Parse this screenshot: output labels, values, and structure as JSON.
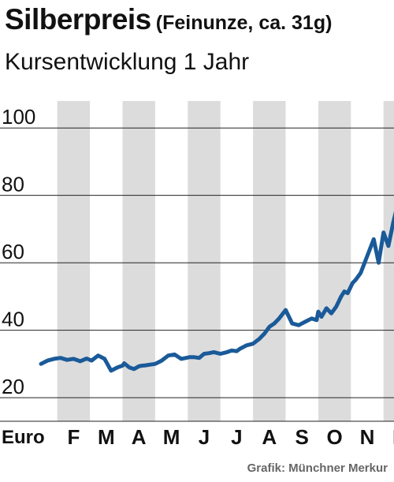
{
  "chart_data": {
    "type": "line",
    "title": "Silberpreis",
    "title_note": "(Feinunze, ca. 31g)",
    "subtitle": "Kursentwicklung 1 Jahr",
    "xlabel": "Euro",
    "ylabel": "",
    "ylim": [
      13,
      108
    ],
    "yticks": [
      20,
      40,
      60,
      80,
      100
    ],
    "months": [
      "F",
      "M",
      "A",
      "M",
      "J",
      "J",
      "A",
      "S",
      "O",
      "N",
      "D"
    ],
    "xlim": [
      0,
      12
    ],
    "grid": "vertical-bands",
    "series": [
      {
        "color": "#1a5a99",
        "x": [
          0.0,
          0.2,
          0.4,
          0.6,
          0.8,
          1.0,
          1.2,
          1.4,
          1.55,
          1.75,
          1.95,
          2.15,
          2.35,
          2.5,
          2.55,
          2.7,
          2.85,
          2.95,
          3.0,
          3.1,
          3.2,
          3.35,
          3.5,
          3.7,
          3.9,
          4.1,
          4.3,
          4.45,
          4.55,
          4.7,
          4.85,
          5.0,
          5.15,
          5.3,
          5.5,
          5.7,
          5.85,
          6.0,
          6.1,
          6.3,
          6.5,
          6.7,
          6.85,
          7.0,
          7.15,
          7.3,
          7.5,
          7.7,
          7.9,
          8.1,
          8.3,
          8.45,
          8.5,
          8.6,
          8.75,
          8.9,
          9.05,
          9.2,
          9.3,
          9.4,
          9.55,
          9.65,
          9.8,
          10.0,
          10.2,
          10.35,
          10.5,
          10.65,
          10.8,
          10.95,
          11.05,
          11.15,
          11.25,
          11.35,
          11.45,
          11.55,
          11.65,
          11.75,
          11.85,
          11.95
        ],
        "values": [
          30.0,
          31.0,
          31.5,
          31.8,
          31.2,
          31.5,
          30.8,
          31.6,
          31.0,
          32.5,
          31.5,
          28.0,
          29.0,
          29.5,
          30.2,
          29.0,
          28.5,
          29.0,
          29.3,
          29.5,
          29.6,
          29.8,
          30.0,
          31.0,
          32.5,
          32.8,
          31.5,
          31.8,
          32.0,
          32.0,
          31.8,
          33.0,
          33.2,
          33.5,
          33.0,
          33.5,
          34.0,
          33.8,
          34.5,
          35.5,
          36.0,
          37.5,
          39.0,
          41.0,
          42.0,
          43.5,
          46.0,
          42.0,
          41.5,
          42.5,
          43.5,
          43.0,
          45.5,
          44.0,
          46.5,
          45.0,
          47.0,
          50.0,
          51.5,
          51.0,
          54.0,
          55.0,
          57.0,
          62.0,
          67.0,
          60.0,
          69.0,
          65.0,
          72.0,
          78.0,
          80.5,
          79.5,
          81.0,
          80.0,
          81.5,
          81.0,
          81.2,
          81.5,
          81.4,
          81.6
        ]
      }
    ]
  },
  "credit": "Grafik: Münchner Merkur"
}
